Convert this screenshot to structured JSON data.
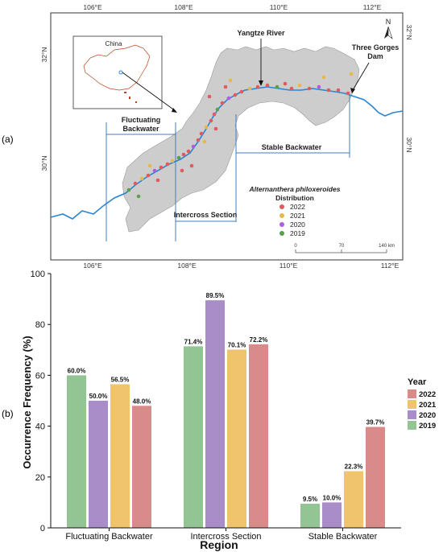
{
  "panel_labels": {
    "a": "(a)",
    "b": "(b)"
  },
  "map": {
    "lon_ticks": [
      "106°E",
      "108°E",
      "110°E",
      "112°E"
    ],
    "lat_ticks_left": [
      "32°N",
      "30°N"
    ],
    "lat_ticks_right": [
      "32°N",
      "30°N"
    ],
    "inset_title": "China",
    "labels": {
      "yangtze": "Yangtze River",
      "dam_line1": "Three Gorges",
      "dam_line2": "Dam",
      "fluct_line1": "Fluctuating",
      "fluct_line2": "Backwater",
      "stable": "Stable Backwater",
      "intercross": "Intercross Section",
      "north": "N"
    },
    "legend": {
      "title_line1": "Alternanthera philoxeroides",
      "title_line2": "Distribution",
      "items": [
        {
          "label": "2022",
          "color": "#e05a5f"
        },
        {
          "label": "2021",
          "color": "#e6b84a"
        },
        {
          "label": "2020",
          "color": "#b25be0"
        },
        {
          "label": "2019",
          "color": "#5aa04e"
        }
      ]
    },
    "scalebar": {
      "t0": "0",
      "t1": "70",
      "t2": "140 km"
    },
    "colors": {
      "land": "#cdcdcd",
      "river": "#2a86d1",
      "section_line": "#3c7fc4"
    }
  },
  "chart_data": {
    "type": "bar",
    "categories": [
      "Fluctuating Backwater",
      "Intercross Section",
      "Stable Backwater"
    ],
    "series": [
      {
        "name": "2019",
        "color": "#93c493",
        "values": [
          60.0,
          71.4,
          9.5
        ],
        "labels": [
          "60.0%",
          "71.4%",
          "9.5%"
        ]
      },
      {
        "name": "2020",
        "color": "#a98dc9",
        "values": [
          50.0,
          89.5,
          10.0
        ],
        "labels": [
          "50.0%",
          "89.5%",
          "10.0%"
        ]
      },
      {
        "name": "2021",
        "color": "#efc46c",
        "values": [
          56.5,
          70.1,
          22.3
        ],
        "labels": [
          "56.5%",
          "70.1%",
          "22.3%"
        ]
      },
      {
        "name": "2022",
        "color": "#d98b8a",
        "values": [
          48.0,
          72.2,
          39.7
        ],
        "labels": [
          "48.0%",
          "72.2%",
          "39.7%"
        ]
      }
    ],
    "ylim": [
      0,
      100
    ],
    "yticks": [
      "0",
      "20",
      "40",
      "60",
      "80",
      "100"
    ],
    "xlabel": "Region",
    "ylabel": "Occurrence Frequency (%)",
    "legend": {
      "title": "Year",
      "position": "right",
      "order": [
        "2022",
        "2021",
        "2020",
        "2019"
      ]
    },
    "grid": false
  }
}
